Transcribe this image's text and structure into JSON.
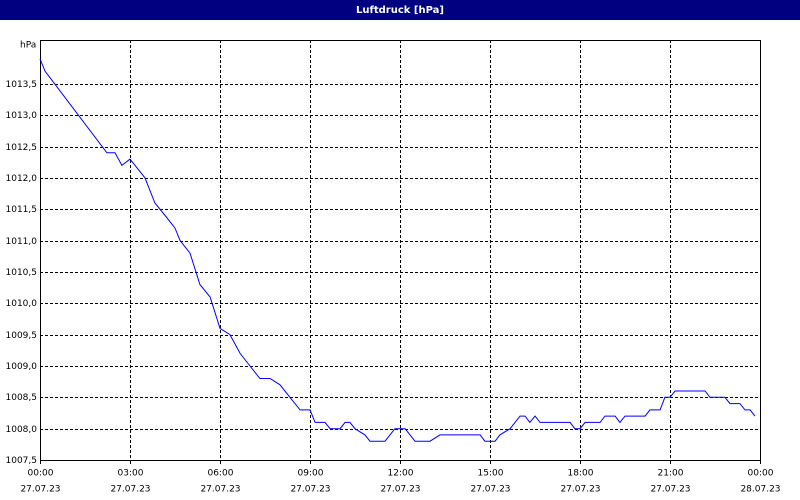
{
  "chart_data": {
    "type": "line",
    "title": "Luftdruck [hPa]",
    "y_label": "hPa",
    "x": [
      0,
      0.17,
      0.33,
      2.23,
      2.5,
      2.73,
      3.0,
      3.5,
      3.83,
      4.17,
      4.5,
      4.67,
      5.0,
      5.33,
      5.67,
      6.0,
      6.33,
      6.67,
      7.0,
      7.33,
      7.67,
      8.0,
      8.33,
      8.67,
      9.0,
      9.17,
      9.5,
      9.67,
      10.0,
      10.17,
      10.33,
      10.5,
      10.83,
      11.0,
      11.5,
      11.83,
      12.17,
      12.5,
      13.0,
      13.33,
      14.67,
      14.83,
      15.17,
      15.33,
      15.67,
      16.0,
      16.17,
      16.33,
      16.5,
      16.67,
      17.67,
      17.83,
      18.0,
      18.17,
      18.67,
      18.83,
      19.17,
      19.33,
      19.5,
      20.17,
      20.33,
      20.67,
      20.83,
      21.0,
      21.17,
      22.17,
      22.33,
      22.83,
      23.0,
      23.33,
      23.5,
      23.67,
      23.83
    ],
    "series": [
      {
        "name": "Luftdruck",
        "color": "#0000ff",
        "values": [
          1013.9,
          1013.7,
          1013.6,
          1012.4,
          1012.4,
          1012.2,
          1012.3,
          1012.0,
          1011.6,
          1011.4,
          1011.2,
          1011.0,
          1010.8,
          1010.3,
          1010.1,
          1009.6,
          1009.5,
          1009.2,
          1009.0,
          1008.8,
          1008.8,
          1008.7,
          1008.5,
          1008.3,
          1008.3,
          1008.1,
          1008.1,
          1008.0,
          1008.0,
          1008.1,
          1008.1,
          1008.0,
          1007.9,
          1007.8,
          1007.8,
          1008.0,
          1008.0,
          1007.8,
          1007.8,
          1007.9,
          1007.9,
          1007.8,
          1007.8,
          1007.9,
          1008.0,
          1008.2,
          1008.2,
          1008.1,
          1008.2,
          1008.1,
          1008.1,
          1008.0,
          1008.0,
          1008.1,
          1008.1,
          1008.2,
          1008.2,
          1008.1,
          1008.2,
          1008.2,
          1008.3,
          1008.3,
          1008.5,
          1008.5,
          1008.6,
          1008.6,
          1008.5,
          1008.5,
          1008.4,
          1008.4,
          1008.3,
          1008.3,
          1008.2
        ]
      }
    ],
    "xlim": [
      0,
      24
    ],
    "xticks": [
      {
        "value": 0,
        "label": "00:00"
      },
      {
        "value": 3,
        "label": "03:00"
      },
      {
        "value": 6,
        "label": "06:00"
      },
      {
        "value": 9,
        "label": "09:00"
      },
      {
        "value": 12,
        "label": "12:00"
      },
      {
        "value": 15,
        "label": "15:00"
      },
      {
        "value": 18,
        "label": "18:00"
      },
      {
        "value": 21,
        "label": "21:00"
      },
      {
        "value": 24,
        "label": "00:00"
      }
    ],
    "xtick_dates": [
      "27.07.23",
      "27.07.23",
      "27.07.23",
      "27.07.23",
      "27.07.23",
      "27.07.23",
      "27.07.23",
      "27.07.23",
      "28.07.23"
    ],
    "ylim": [
      1007.5,
      1014.2
    ],
    "yticks": [
      {
        "value": 1007.5,
        "label": "1007,5"
      },
      {
        "value": 1008.0,
        "label": "1008,0"
      },
      {
        "value": 1008.5,
        "label": "1008,5"
      },
      {
        "value": 1009.0,
        "label": "1009,0"
      },
      {
        "value": 1009.5,
        "label": "1009,5"
      },
      {
        "value": 1010.0,
        "label": "1010,0"
      },
      {
        "value": 1010.5,
        "label": "1010,5"
      },
      {
        "value": 1011.0,
        "label": "1011,0"
      },
      {
        "value": 1011.5,
        "label": "1011,5"
      },
      {
        "value": 1012.0,
        "label": "1012,0"
      },
      {
        "value": 1012.5,
        "label": "1012,5"
      },
      {
        "value": 1013.0,
        "label": "1013,0"
      },
      {
        "value": 1013.5,
        "label": "1013,5"
      }
    ],
    "grid": true
  }
}
